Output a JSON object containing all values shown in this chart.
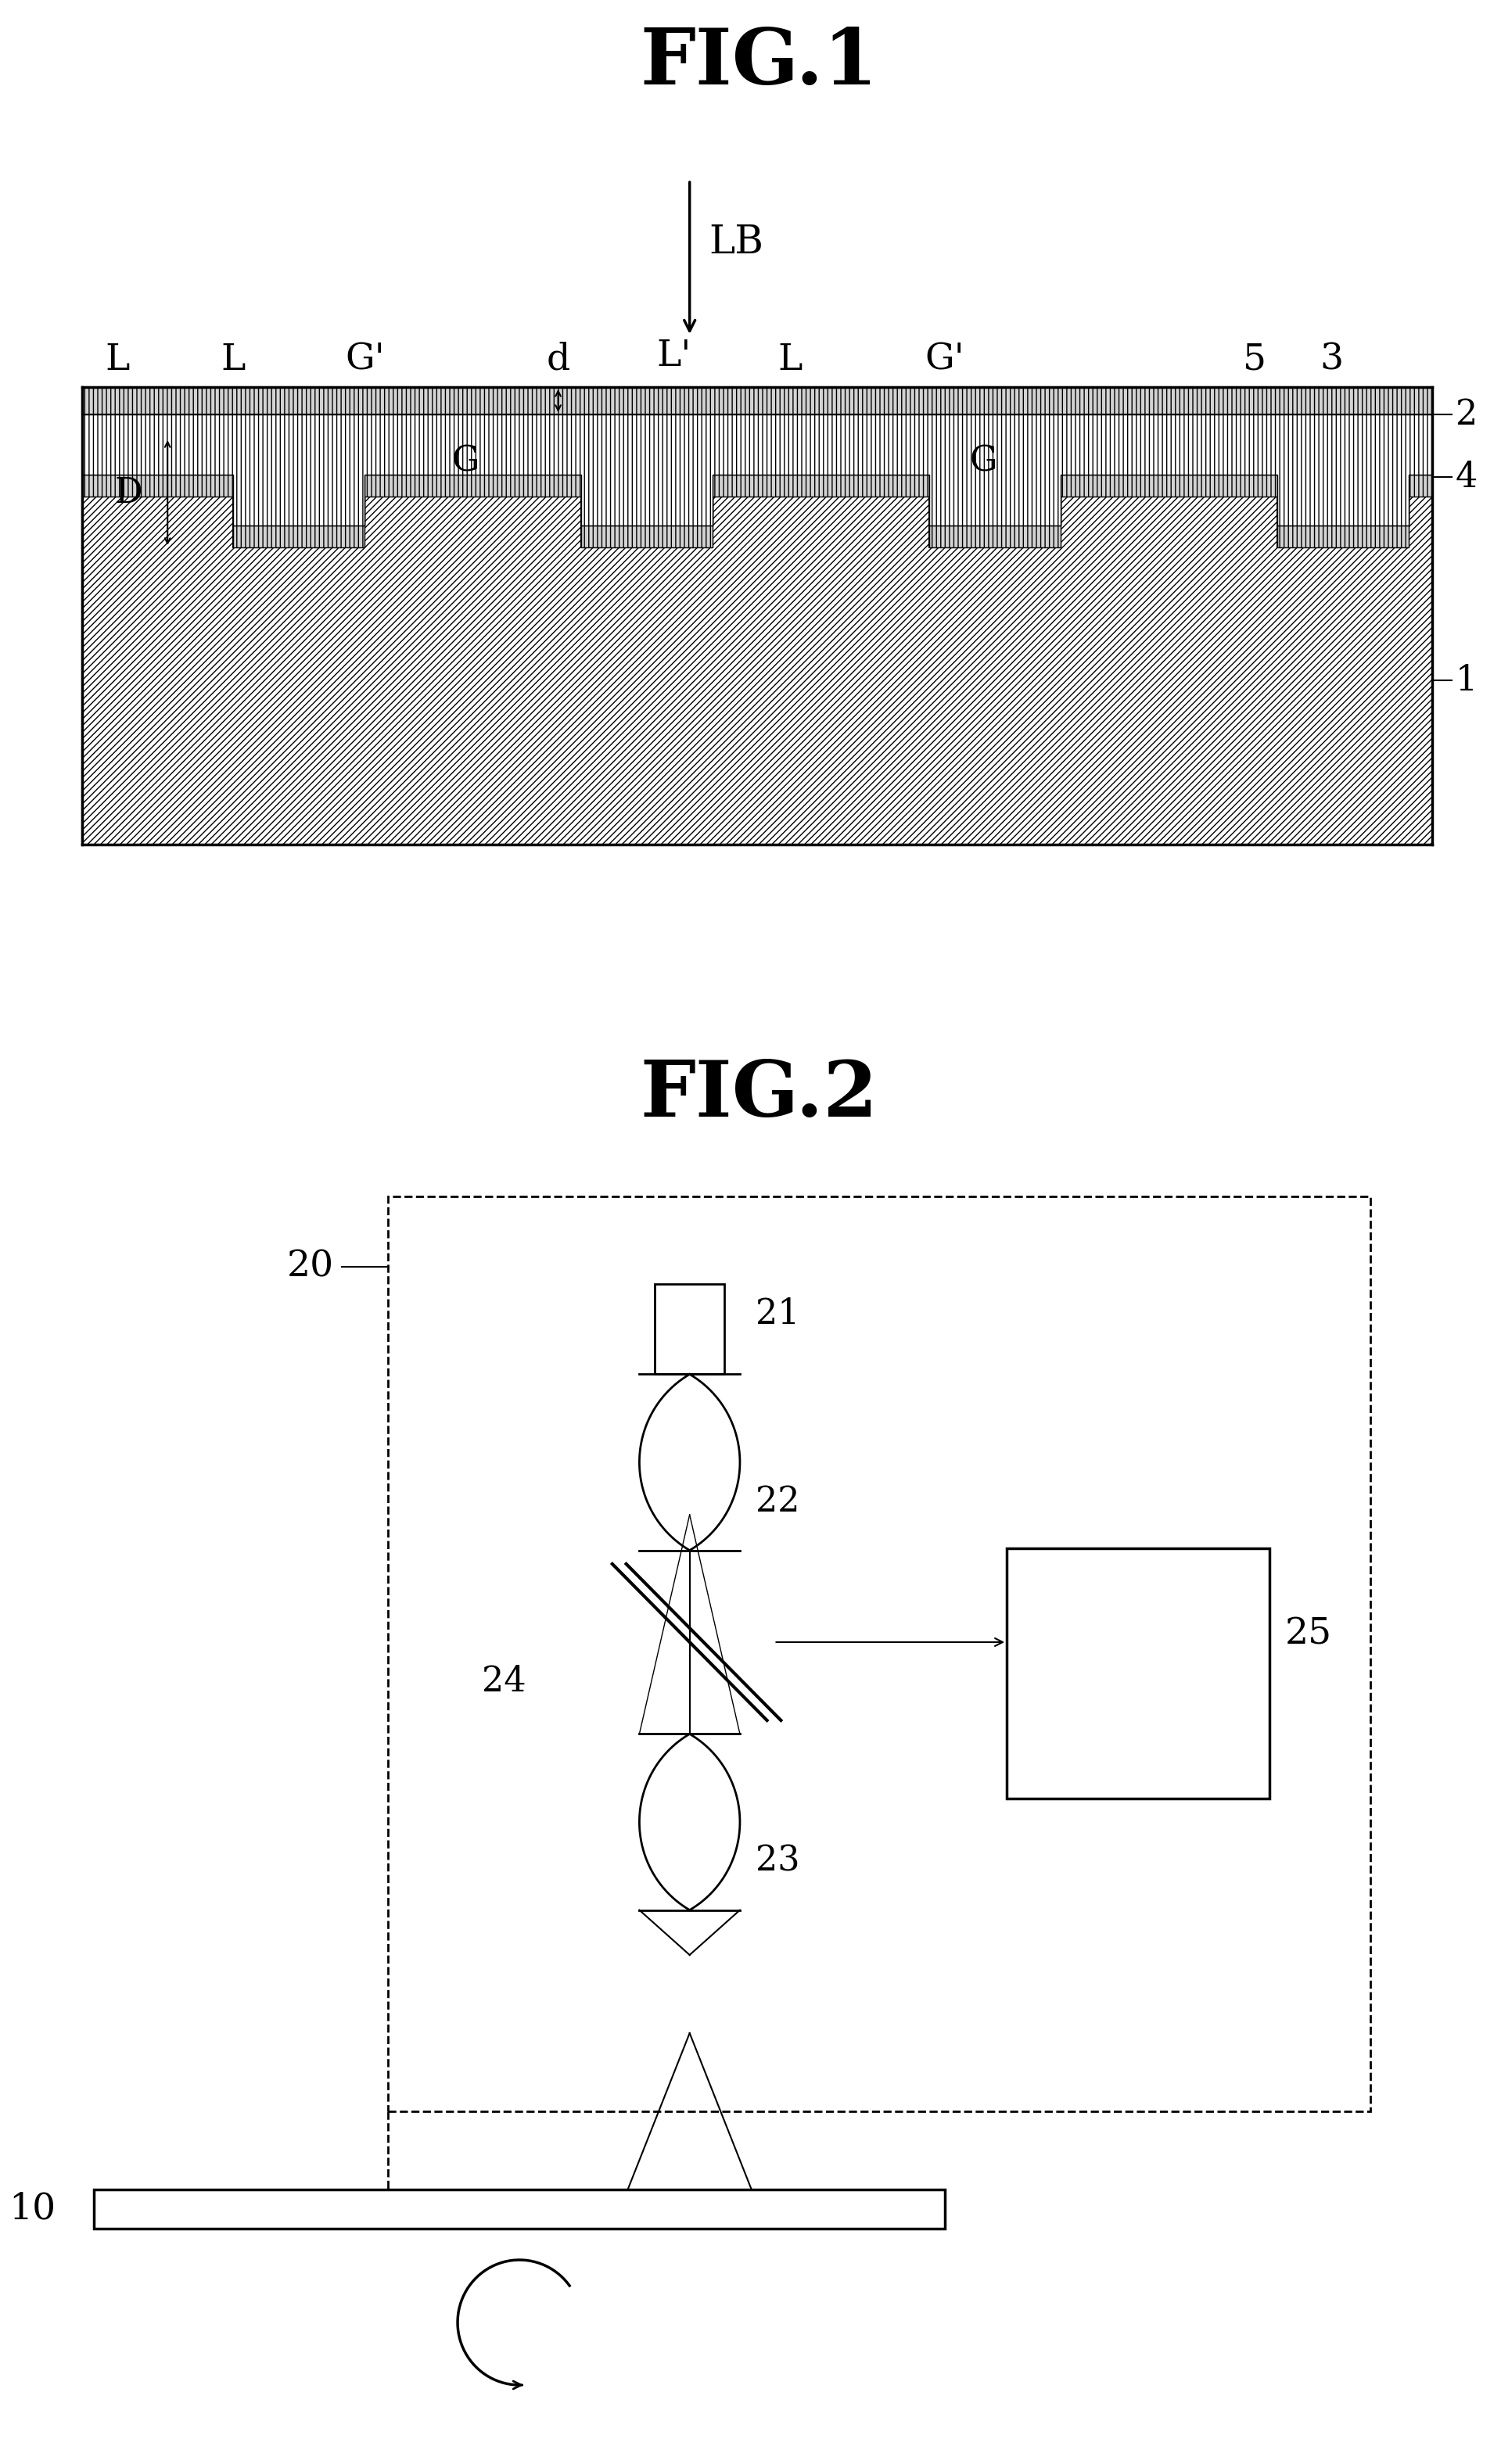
{
  "fig1_title": "FIG.1",
  "fig2_title": "FIG.2",
  "background_color": "#ffffff",
  "line_color": "#000000",
  "hatch_color": "#000000",
  "fig1_labels": {
    "LB": "LB",
    "L_left1": "L",
    "L_left2": "L",
    "Gprime_left": "G'",
    "d": "d",
    "Lprime": "L'",
    "L_right": "L",
    "Gprime_right": "G'",
    "five": "5",
    "three": "3",
    "G_left": "G",
    "G_right": "G",
    "D": "D",
    "two": "2",
    "four": "4",
    "one": "1"
  },
  "fig2_labels": {
    "twenty": "20",
    "twentyone": "21",
    "twentytwo": "22",
    "twentythree": "23",
    "twentyfour": "24",
    "twentyfive": "25"
  }
}
